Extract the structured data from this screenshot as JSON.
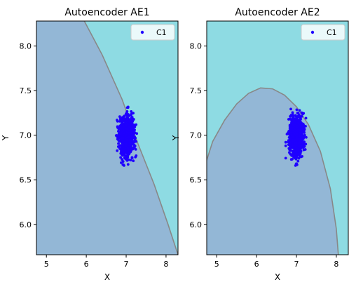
{
  "figure": {
    "colors": {
      "region_a": "#93b7d6",
      "region_b": "#8edbe3",
      "boundary": "#888888",
      "points": "#1f00ff"
    }
  },
  "chart_data": [
    {
      "type": "scatter",
      "title": "Autoencoder AE1",
      "xlabel": "X",
      "ylabel": "Y",
      "xlim": [
        4.75,
        8.3
      ],
      "ylim": [
        5.66,
        8.28
      ],
      "xticks": [
        5,
        6,
        7,
        8
      ],
      "yticks": [
        6.0,
        6.5,
        7.0,
        7.5,
        8.0
      ],
      "grid": false,
      "legend": {
        "position": "top-right",
        "entries": [
          "C1"
        ]
      },
      "series": [
        {
          "name": "C1",
          "color": "#1f00ff",
          "center": [
            7.02,
            6.99
          ],
          "std": [
            0.09,
            0.11
          ],
          "count": 900
        }
      ],
      "decision_boundary": [
        [
          5.95,
          8.28
        ],
        [
          6.4,
          7.9
        ],
        [
          6.9,
          7.4
        ],
        [
          7.3,
          6.9
        ],
        [
          7.7,
          6.45
        ],
        [
          8.05,
          6.0
        ],
        [
          8.3,
          5.66
        ]
      ]
    },
    {
      "type": "scatter",
      "title": "Autoencoder AE2",
      "xlabel": "X",
      "ylabel": "Y",
      "xlim": [
        4.75,
        8.3
      ],
      "ylim": [
        5.66,
        8.28
      ],
      "xticks": [
        5,
        6,
        7,
        8
      ],
      "yticks": [
        6.0,
        6.5,
        7.0,
        7.5,
        8.0
      ],
      "grid": false,
      "legend": {
        "position": "top-right",
        "entries": [
          "C1"
        ]
      },
      "series": [
        {
          "name": "C1",
          "color": "#1f00ff",
          "center": [
            7.0,
            6.99
          ],
          "std": [
            0.09,
            0.11
          ],
          "count": 900
        }
      ],
      "decision_boundary": [
        [
          4.75,
          6.72
        ],
        [
          4.9,
          6.93
        ],
        [
          5.2,
          7.17
        ],
        [
          5.5,
          7.35
        ],
        [
          5.8,
          7.47
        ],
        [
          6.1,
          7.53
        ],
        [
          6.4,
          7.52
        ],
        [
          6.7,
          7.45
        ],
        [
          7.0,
          7.32
        ],
        [
          7.3,
          7.12
        ],
        [
          7.6,
          6.82
        ],
        [
          7.85,
          6.4
        ],
        [
          8.0,
          5.95
        ],
        [
          8.05,
          5.66
        ]
      ]
    }
  ]
}
